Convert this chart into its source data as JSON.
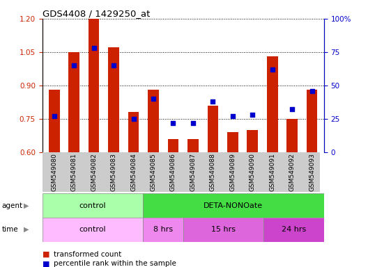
{
  "title": "GDS4408 / 1429250_at",
  "samples": [
    "GSM549080",
    "GSM549081",
    "GSM549082",
    "GSM549083",
    "GSM549084",
    "GSM549085",
    "GSM549086",
    "GSM549087",
    "GSM549088",
    "GSM549089",
    "GSM549090",
    "GSM549091",
    "GSM549092",
    "GSM549093"
  ],
  "bar_values": [
    0.88,
    1.05,
    1.2,
    1.07,
    0.78,
    0.88,
    0.66,
    0.66,
    0.81,
    0.69,
    0.7,
    1.03,
    0.75,
    0.88
  ],
  "dot_values": [
    27,
    65,
    78,
    65,
    25,
    40,
    22,
    22,
    38,
    27,
    28,
    62,
    32,
    46
  ],
  "ylim_left": [
    0.6,
    1.2
  ],
  "ylim_right": [
    0,
    100
  ],
  "yticks_left": [
    0.6,
    0.75,
    0.9,
    1.05,
    1.2
  ],
  "yticks_right": [
    0,
    25,
    50,
    75,
    100
  ],
  "bar_color": "#cc2200",
  "dot_color": "#0000cc",
  "bar_baseline": 0.6,
  "agent_control_count": 5,
  "agent_deta_count": 9,
  "agent_control_color": "#aaffaa",
  "agent_deta_color": "#44dd44",
  "agent_control_label": "control",
  "agent_deta_label": "DETA-NONOate",
  "time_sections": [
    "control",
    "8 hrs",
    "15 hrs",
    "24 hrs"
  ],
  "time_counts": [
    5,
    2,
    4,
    3
  ],
  "time_colors": [
    "#ffbbff",
    "#ee88ee",
    "#dd66dd",
    "#cc44cc"
  ],
  "legend_bar_label": "transformed count",
  "legend_dot_label": "percentile rank within the sample",
  "background_color": "#ffffff",
  "label_area_color": "#cccccc"
}
